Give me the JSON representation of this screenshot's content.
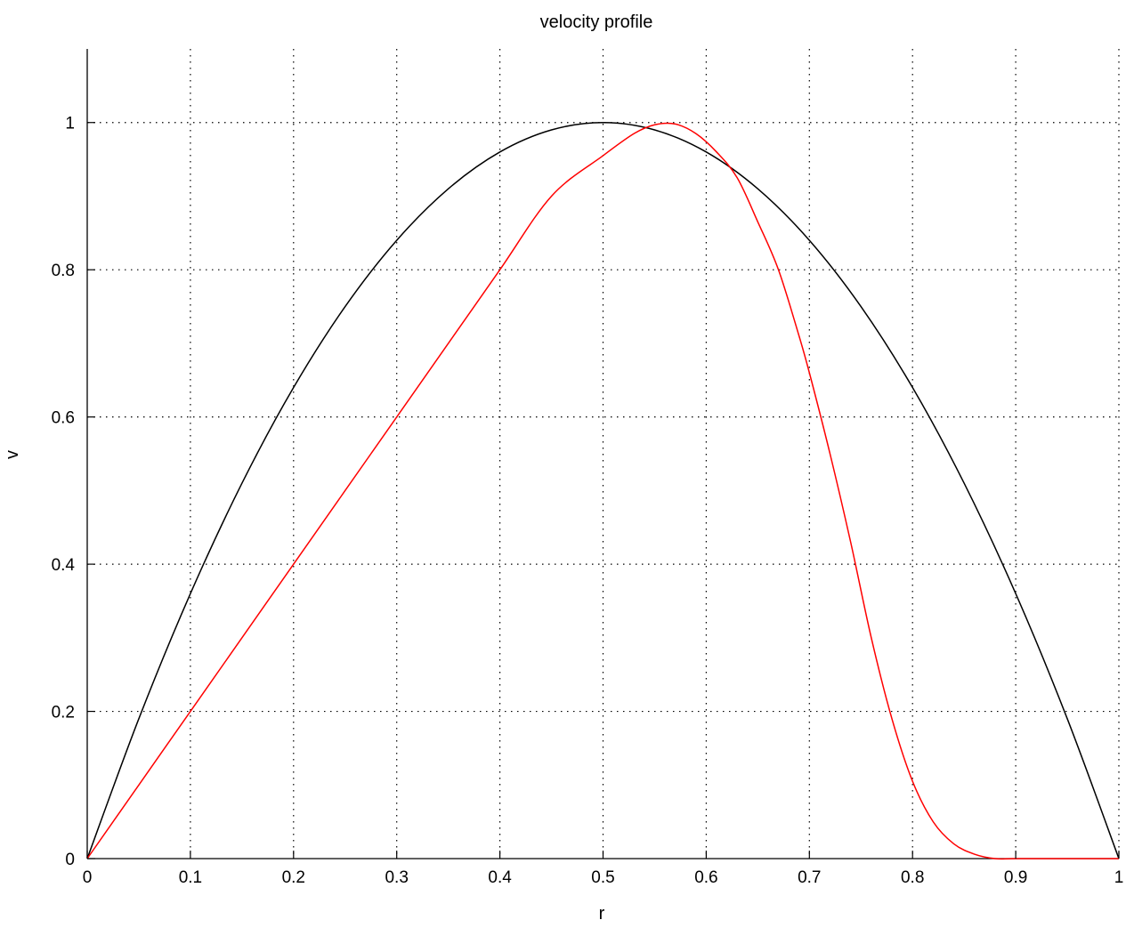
{
  "chart_data": {
    "type": "line",
    "title": "velocity profile",
    "xlabel": "r",
    "ylabel": "v",
    "xlim": [
      0,
      1
    ],
    "ylim": [
      0,
      1.1
    ],
    "x_ticks": [
      0,
      0.1,
      0.2,
      0.3,
      0.4,
      0.5,
      0.6,
      0.7,
      0.8,
      0.9,
      1
    ],
    "x_tick_labels": [
      "0",
      "0.1",
      "0.2",
      "0.3",
      "0.4",
      "0.5",
      "0.6",
      "0.7",
      "0.8",
      "0.9",
      "1"
    ],
    "y_ticks": [
      0,
      0.2,
      0.4,
      0.6,
      0.8,
      1
    ],
    "y_tick_labels": [
      "0",
      "0.2",
      "0.4",
      "0.6",
      "0.8",
      "1"
    ],
    "grid": true,
    "grid_style": "dotted",
    "legend": "none",
    "series": [
      {
        "color": "#000000",
        "x": [
          0,
          0.05,
          0.1,
          0.15,
          0.2,
          0.25,
          0.3,
          0.35,
          0.4,
          0.45,
          0.5,
          0.55,
          0.6,
          0.65,
          0.7,
          0.75,
          0.8,
          0.85,
          0.9,
          0.95,
          1
        ],
        "y": [
          0,
          0.19,
          0.36,
          0.51,
          0.64,
          0.75,
          0.84,
          0.91,
          0.96,
          0.99,
          1.0,
          0.99,
          0.96,
          0.91,
          0.84,
          0.75,
          0.64,
          0.51,
          0.36,
          0.19,
          0
        ]
      },
      {
        "color": "#ff0000",
        "x": [
          0,
          0.05,
          0.1,
          0.15,
          0.2,
          0.25,
          0.3,
          0.35,
          0.4,
          0.45,
          0.5,
          0.53,
          0.55,
          0.57,
          0.59,
          0.61,
          0.63,
          0.65,
          0.67,
          0.69,
          0.7,
          0.72,
          0.74,
          0.76,
          0.78,
          0.8,
          0.82,
          0.84,
          0.86,
          0.88,
          0.9,
          0.95,
          1
        ],
        "y": [
          0,
          0.1,
          0.2,
          0.3,
          0.4,
          0.5,
          0.6,
          0.7,
          0.8,
          0.9,
          0.955,
          0.985,
          0.997,
          0.998,
          0.985,
          0.96,
          0.925,
          0.865,
          0.8,
          0.71,
          0.66,
          0.55,
          0.43,
          0.3,
          0.19,
          0.105,
          0.05,
          0.02,
          0.006,
          0.0,
          0.0,
          0.0,
          0.0
        ]
      }
    ]
  }
}
